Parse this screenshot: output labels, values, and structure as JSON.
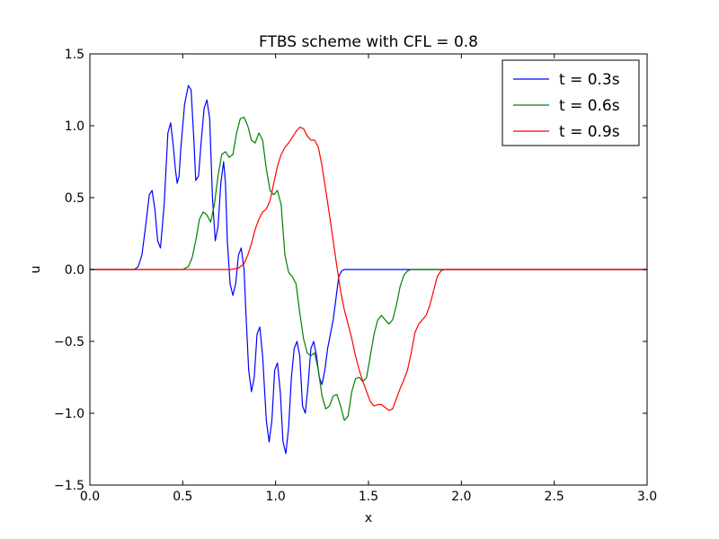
{
  "chart_data": {
    "type": "line",
    "title": "FTBS scheme with CFL = 0.8",
    "xlabel": "x",
    "ylabel": "u",
    "xlim": [
      0.0,
      3.0
    ],
    "ylim": [
      -1.5,
      1.5
    ],
    "xticks": [
      0.0,
      0.5,
      1.0,
      1.5,
      2.0,
      2.5,
      3.0
    ],
    "xtick_labels": [
      "0.0",
      "0.5",
      "1.0",
      "1.5",
      "2.0",
      "2.5",
      "3.0"
    ],
    "yticks": [
      -1.5,
      -1.0,
      -0.5,
      0.0,
      0.5,
      1.0,
      1.5
    ],
    "ytick_labels": [
      "−1.5",
      "−1.0",
      "−0.5",
      "0.0",
      "0.5",
      "1.0",
      "1.5"
    ],
    "grid": false,
    "legend_position": "top-right",
    "series": [
      {
        "name": "t = 0.3s",
        "color": "#0000ff",
        "x": [
          0.0,
          0.2,
          0.24,
          0.26,
          0.28,
          0.3,
          0.32,
          0.335,
          0.35,
          0.365,
          0.38,
          0.4,
          0.42,
          0.435,
          0.45,
          0.46,
          0.47,
          0.48,
          0.49,
          0.51,
          0.53,
          0.545,
          0.56,
          0.57,
          0.585,
          0.6,
          0.615,
          0.63,
          0.645,
          0.66,
          0.675,
          0.69,
          0.705,
          0.72,
          0.73,
          0.74,
          0.755,
          0.77,
          0.785,
          0.8,
          0.815,
          0.83,
          0.84,
          0.855,
          0.87,
          0.885,
          0.9,
          0.915,
          0.93,
          0.95,
          0.965,
          0.98,
          0.995,
          1.01,
          1.025,
          1.04,
          1.055,
          1.07,
          1.085,
          1.1,
          1.115,
          1.13,
          1.145,
          1.16,
          1.175,
          1.19,
          1.205,
          1.22,
          1.235,
          1.25,
          1.265,
          1.28,
          1.295,
          1.31,
          1.325,
          1.34,
          1.355,
          1.37,
          1.4,
          1.6,
          2.0,
          3.0
        ],
        "y": [
          0.0,
          0.0,
          0.0,
          0.02,
          0.1,
          0.3,
          0.52,
          0.55,
          0.42,
          0.2,
          0.15,
          0.45,
          0.95,
          1.02,
          0.85,
          0.7,
          0.6,
          0.65,
          0.85,
          1.15,
          1.28,
          1.25,
          0.9,
          0.62,
          0.65,
          0.9,
          1.12,
          1.18,
          1.05,
          0.5,
          0.2,
          0.3,
          0.6,
          0.75,
          0.6,
          0.2,
          -0.1,
          -0.18,
          -0.1,
          0.1,
          0.15,
          0.0,
          -0.3,
          -0.7,
          -0.85,
          -0.75,
          -0.45,
          -0.4,
          -0.6,
          -1.05,
          -1.2,
          -1.05,
          -0.7,
          -0.65,
          -0.85,
          -1.2,
          -1.28,
          -1.1,
          -0.75,
          -0.55,
          -0.5,
          -0.6,
          -0.95,
          -1.0,
          -0.8,
          -0.55,
          -0.5,
          -0.6,
          -0.75,
          -0.8,
          -0.7,
          -0.55,
          -0.45,
          -0.35,
          -0.2,
          -0.05,
          -0.01,
          0.0,
          0.0,
          0.0,
          0.0,
          0.0
        ]
      },
      {
        "name": "t = 0.6s",
        "color": "#008000",
        "x": [
          0.0,
          0.45,
          0.5,
          0.53,
          0.55,
          0.57,
          0.59,
          0.61,
          0.63,
          0.65,
          0.67,
          0.69,
          0.71,
          0.73,
          0.75,
          0.77,
          0.79,
          0.81,
          0.83,
          0.85,
          0.87,
          0.89,
          0.91,
          0.93,
          0.95,
          0.97,
          0.99,
          1.01,
          1.03,
          1.05,
          1.07,
          1.09,
          1.11,
          1.13,
          1.15,
          1.17,
          1.19,
          1.21,
          1.23,
          1.25,
          1.27,
          1.29,
          1.31,
          1.33,
          1.35,
          1.37,
          1.39,
          1.41,
          1.43,
          1.45,
          1.47,
          1.49,
          1.51,
          1.53,
          1.55,
          1.57,
          1.59,
          1.61,
          1.63,
          1.65,
          1.67,
          1.69,
          1.71,
          1.73,
          1.75,
          1.8,
          2.0,
          3.0
        ],
        "y": [
          0.0,
          0.0,
          0.0,
          0.02,
          0.08,
          0.2,
          0.35,
          0.4,
          0.38,
          0.33,
          0.45,
          0.65,
          0.8,
          0.82,
          0.78,
          0.8,
          0.95,
          1.05,
          1.06,
          1.0,
          0.9,
          0.88,
          0.95,
          0.9,
          0.7,
          0.55,
          0.52,
          0.55,
          0.45,
          0.1,
          -0.02,
          -0.05,
          -0.1,
          -0.3,
          -0.48,
          -0.58,
          -0.6,
          -0.58,
          -0.7,
          -0.88,
          -0.97,
          -0.95,
          -0.88,
          -0.87,
          -0.95,
          -1.05,
          -1.02,
          -0.85,
          -0.76,
          -0.75,
          -0.78,
          -0.75,
          -0.6,
          -0.45,
          -0.35,
          -0.32,
          -0.35,
          -0.38,
          -0.35,
          -0.25,
          -0.12,
          -0.04,
          -0.01,
          0.0,
          0.0,
          0.0,
          0.0,
          0.0
        ]
      },
      {
        "name": "t = 0.9s",
        "color": "#ff0000",
        "x": [
          0.0,
          0.72,
          0.76,
          0.8,
          0.83,
          0.85,
          0.87,
          0.89,
          0.91,
          0.93,
          0.95,
          0.97,
          0.99,
          1.01,
          1.03,
          1.05,
          1.07,
          1.09,
          1.11,
          1.13,
          1.15,
          1.17,
          1.19,
          1.21,
          1.23,
          1.25,
          1.27,
          1.29,
          1.31,
          1.33,
          1.35,
          1.37,
          1.39,
          1.41,
          1.43,
          1.45,
          1.47,
          1.49,
          1.51,
          1.53,
          1.55,
          1.57,
          1.59,
          1.61,
          1.63,
          1.65,
          1.67,
          1.69,
          1.71,
          1.73,
          1.75,
          1.77,
          1.79,
          1.81,
          1.83,
          1.85,
          1.87,
          1.89,
          1.91,
          1.93,
          1.95,
          1.97,
          1.99,
          2.01,
          2.04,
          2.1,
          3.0
        ],
        "y": [
          0.0,
          0.0,
          0.0,
          0.01,
          0.04,
          0.1,
          0.18,
          0.28,
          0.35,
          0.4,
          0.42,
          0.48,
          0.6,
          0.72,
          0.8,
          0.85,
          0.88,
          0.92,
          0.96,
          0.99,
          0.98,
          0.93,
          0.9,
          0.9,
          0.85,
          0.72,
          0.55,
          0.38,
          0.2,
          0.02,
          -0.15,
          -0.28,
          -0.38,
          -0.48,
          -0.6,
          -0.7,
          -0.78,
          -0.85,
          -0.92,
          -0.95,
          -0.94,
          -0.94,
          -0.96,
          -0.98,
          -0.97,
          -0.9,
          -0.83,
          -0.77,
          -0.7,
          -0.58,
          -0.44,
          -0.38,
          -0.35,
          -0.32,
          -0.25,
          -0.15,
          -0.05,
          -0.01,
          0.0,
          0.0,
          0.0,
          0.0,
          0.0,
          0.0,
          0.0,
          0.0,
          0.0
        ]
      }
    ]
  }
}
